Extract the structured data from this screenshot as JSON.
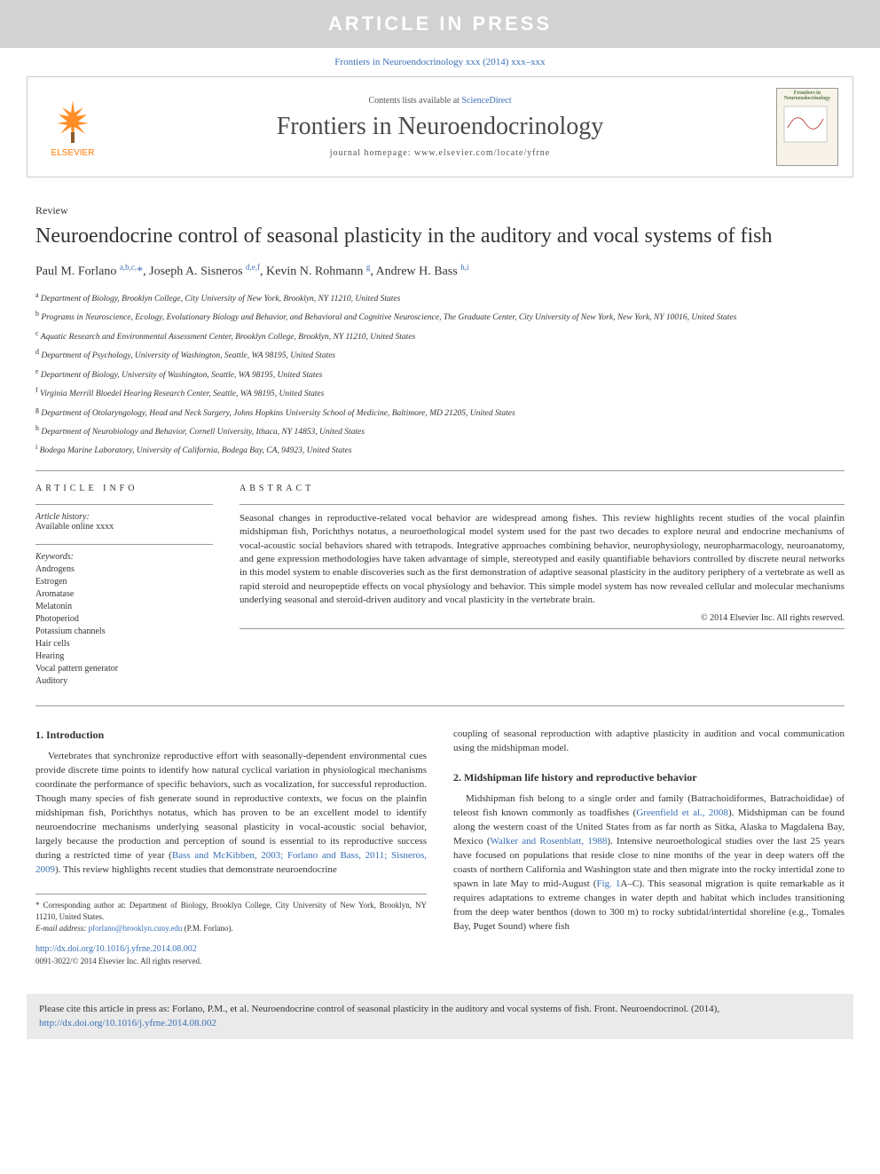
{
  "press_banner": "ARTICLE IN PRESS",
  "citation_top": "Frontiers in Neuroendocrinology xxx (2014) xxx–xxx",
  "header": {
    "contents_prefix": "Contents lists available at ",
    "contents_link": "ScienceDirect",
    "journal_name": "Frontiers in Neuroendocrinology",
    "homepage_prefix": "journal homepage: ",
    "homepage": "www.elsevier.com/locate/yfrne",
    "elsevier_label": "ELSEVIER",
    "thumb_title": "Frontiers in Neuroendocrinology"
  },
  "article": {
    "type": "Review",
    "title": "Neuroendocrine control of seasonal plasticity in the auditory and vocal systems of fish",
    "authors_html": "Paul M. Forlano <sup>a,b,c,</sup><span class='corr'>*</span>, Joseph A. Sisneros <sup>d,e,f</sup>, Kevin N. Rohmann <sup>g</sup>, Andrew H. Bass <sup>h,i</sup>",
    "affiliations": [
      "a Department of Biology, Brooklyn College, City University of New York, Brooklyn, NY 11210, United States",
      "b Programs in Neuroscience, Ecology, Evolutionary Biology and Behavior, and Behavioral and Cognitive Neuroscience, The Graduate Center, City University of New York, New York, NY 10016, United States",
      "c Aquatic Research and Environmental Assessment Center, Brooklyn College, Brooklyn, NY 11210, United States",
      "d Department of Psychology, University of Washington, Seattle, WA 98195, United States",
      "e Department of Biology, University of Washington, Seattle, WA 98195, United States",
      "f Virginia Merrill Bloedel Hearing Research Center, Seattle, WA 98195, United States",
      "g Department of Otolaryngology, Head and Neck Surgery, Johns Hopkins University School of Medicine, Baltimore, MD 21205, United States",
      "h Department of Neurobiology and Behavior, Cornell University, Ithaca, NY 14853, United States",
      "i Bodega Marine Laboratory, University of California, Bodega Bay, CA, 94923, United States"
    ]
  },
  "info": {
    "label": "ARTICLE INFO",
    "history_label": "Article history:",
    "history_text": "Available online xxxx",
    "keywords_label": "Keywords:",
    "keywords": [
      "Androgens",
      "Estrogen",
      "Aromatase",
      "Melatonin",
      "Photoperiod",
      "Potassium channels",
      "Hair cells",
      "Hearing",
      "Vocal pattern generator",
      "Auditory"
    ]
  },
  "abstract": {
    "label": "ABSTRACT",
    "text": "Seasonal changes in reproductive-related vocal behavior are widespread among fishes. This review highlights recent studies of the vocal plainfin midshipman fish, Porichthys notatus, a neuroethological model system used for the past two decades to explore neural and endocrine mechanisms of vocal-acoustic social behaviors shared with tetrapods. Integrative approaches combining behavior, neurophysiology, neuropharmacology, neuroanatomy, and gene expression methodologies have taken advantage of simple, stereotyped and easily quantifiable behaviors controlled by discrete neural networks in this model system to enable discoveries such as the first demonstration of adaptive seasonal plasticity in the auditory periphery of a vertebrate as well as rapid steroid and neuropeptide effects on vocal physiology and behavior. This simple model system has now revealed cellular and molecular mechanisms underlying seasonal and steroid-driven auditory and vocal plasticity in the vertebrate brain.",
    "copyright": "© 2014 Elsevier Inc. All rights reserved."
  },
  "body": {
    "s1_heading": "1. Introduction",
    "s1_p1": "Vertebrates that synchronize reproductive effort with seasonally-dependent environmental cues provide discrete time points to identify how natural cyclical variation in physiological mechanisms coordinate the performance of specific behaviors, such as vocalization, for successful reproduction. Though many species of fish generate sound in reproductive contexts, we focus on the plainfin midshipman fish, Porichthys notatus, which has proven to be an excellent model to identify neuroendocrine mechanisms underlying seasonal plasticity in vocal-acoustic social behavior, largely because the production and perception of sound is essential to its reproductive success during a restricted time of year (",
    "s1_ref1": "Bass and McKibben, 2003; Forlano and Bass, 2011; Sisneros, 2009",
    "s1_p1_tail": "). This review highlights recent studies that demonstrate neuroendocrine",
    "s1_p1_cont": "coupling of seasonal reproduction with adaptive plasticity in audition and vocal communication using the midshipman model.",
    "s2_heading": "2. Midshipman life history and reproductive behavior",
    "s2_p1a": "Midshipman fish belong to a single order and family (Batrachoidiformes, Batrachoididae) of teleost fish known commonly as toadfishes (",
    "s2_ref1": "Greenfield et al., 2008",
    "s2_p1b": "). Midshipman can be found along the western coast of the United States from as far north as Sitka, Alaska to Magdalena Bay, Mexico (",
    "s2_ref2": "Walker and Rosenblatt, 1988",
    "s2_p1c": "). Intensive neuroethological studies over the last 25 years have focused on populations that reside close to nine months of the year in deep waters off the coasts of northern California and Washington state and then migrate into the rocky intertidal zone to spawn in late May to mid-August (",
    "s2_ref3": "Fig. 1",
    "s2_p1d": "A–C). This seasonal migration is quite remarkable as it requires adaptations to extreme changes in water depth and habitat which includes transitioning from the deep water benthos (down to 300 m) to rocky subtidal/intertidal shoreline (e.g., Tomales Bay, Puget Sound) where fish"
  },
  "footer": {
    "corr_text": "* Corresponding author at: Department of Biology, Brooklyn College, City University of New York, Brooklyn, NY 11210, United States.",
    "email_label": "E-mail address: ",
    "email": "pforlano@brooklyn.cuny.edu",
    "email_tail": " (P.M. Forlano).",
    "doi": "http://dx.doi.org/10.1016/j.yfrne.2014.08.002",
    "issn": "0091-3022/© 2014 Elsevier Inc. All rights reserved."
  },
  "cite_box": {
    "text": "Please cite this article in press as: Forlano, P.M., et al. Neuroendocrine control of seasonal plasticity in the auditory and vocal systems of fish. Front. Neuroendocrinol. (2014), ",
    "link": "http://dx.doi.org/10.1016/j.yfrne.2014.08.002"
  },
  "colors": {
    "link": "#3a6fb7",
    "banner_bg": "#d2d2d2",
    "elsevier_orange": "#ff7a00"
  }
}
